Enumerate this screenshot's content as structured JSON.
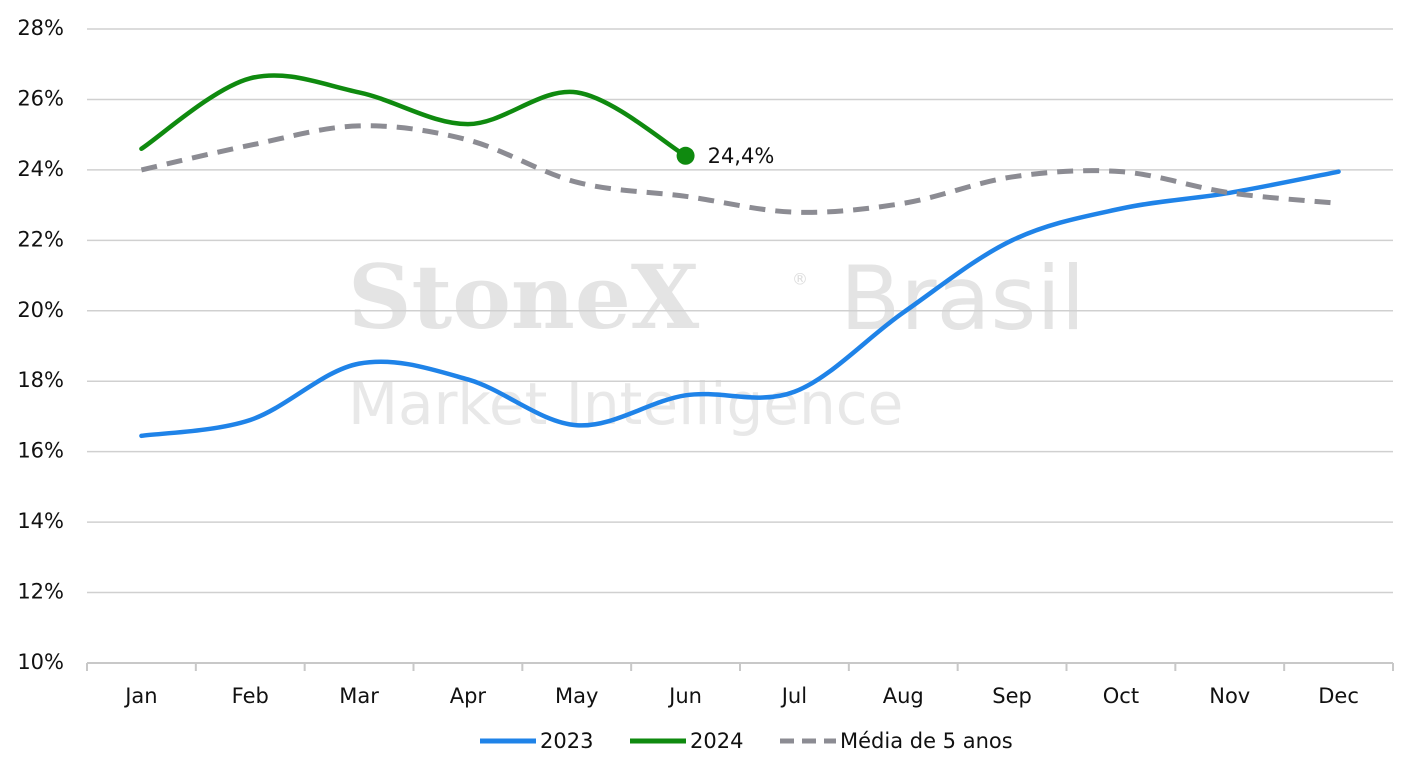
{
  "chart_data": {
    "type": "line",
    "watermark": {
      "brand": "StoneX",
      "mark": "®",
      "region": "Brasil",
      "tagline": "Market Intelligence"
    },
    "categories": [
      "Jan",
      "Feb",
      "Mar",
      "Apr",
      "May",
      "Jun",
      "Jul",
      "Aug",
      "Sep",
      "Oct",
      "Nov",
      "Dec"
    ],
    "series": [
      {
        "name": "2023",
        "color": "#1f83e8",
        "dashed": false,
        "values": [
          16.45,
          16.9,
          18.5,
          18.05,
          16.75,
          17.6,
          17.7,
          19.95,
          22.0,
          22.9,
          23.35,
          23.95
        ]
      },
      {
        "name": "2024",
        "color": "#0f8a0f",
        "dashed": false,
        "values": [
          24.6,
          26.6,
          26.2,
          25.3,
          26.2,
          24.4,
          null,
          null,
          null,
          null,
          null,
          null
        ],
        "value_labels": [
          null,
          null,
          null,
          null,
          null,
          "24,4%",
          null,
          null,
          null,
          null,
          null,
          null
        ]
      },
      {
        "name": "Média de 5 anos",
        "color": "#8c8c93",
        "dashed": true,
        "values": [
          24.0,
          24.7,
          25.25,
          24.85,
          23.65,
          23.25,
          22.8,
          23.05,
          23.8,
          23.95,
          23.35,
          23.05
        ]
      }
    ],
    "ylim": [
      10,
      28
    ],
    "yticks": [
      {
        "value": 10,
        "label": "10%"
      },
      {
        "value": 12,
        "label": "12%"
      },
      {
        "value": 14,
        "label": "14%"
      },
      {
        "value": 16,
        "label": "16%"
      },
      {
        "value": 18,
        "label": "18%"
      },
      {
        "value": 20,
        "label": "20%"
      },
      {
        "value": 22,
        "label": "22%"
      },
      {
        "value": 24,
        "label": "24%"
      },
      {
        "value": 26,
        "label": "26%"
      },
      {
        "value": 28,
        "label": "28%"
      }
    ],
    "grid": true,
    "legend": "bottom"
  }
}
